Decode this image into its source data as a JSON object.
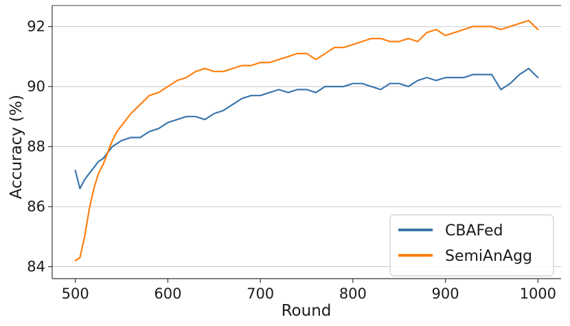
{
  "chart_data": {
    "type": "line",
    "title": "",
    "xlabel": "Round",
    "ylabel": "Accuracy (%)",
    "xlim": [
      475,
      1025
    ],
    "ylim": [
      83.6,
      92.7
    ],
    "x_ticks": [
      500,
      600,
      700,
      800,
      900,
      1000
    ],
    "y_ticks": [
      84,
      86,
      88,
      90,
      92
    ],
    "grid": "horizontal",
    "legend": {
      "position": "bottom-right"
    },
    "x": [
      500,
      505,
      510,
      515,
      520,
      525,
      530,
      535,
      540,
      545,
      550,
      560,
      570,
      580,
      590,
      600,
      610,
      620,
      630,
      640,
      650,
      660,
      670,
      680,
      690,
      700,
      710,
      720,
      730,
      740,
      750,
      760,
      770,
      780,
      790,
      800,
      810,
      820,
      830,
      840,
      850,
      860,
      870,
      880,
      890,
      900,
      910,
      920,
      930,
      940,
      950,
      960,
      970,
      980,
      990,
      1000
    ],
    "series": [
      {
        "name": "CBAFed",
        "color": "#3a75ac",
        "values": [
          87.2,
          86.6,
          86.9,
          87.1,
          87.3,
          87.5,
          87.6,
          87.8,
          88.0,
          88.1,
          88.2,
          88.3,
          88.3,
          88.5,
          88.6,
          88.8,
          88.9,
          89.0,
          89.0,
          88.9,
          89.1,
          89.2,
          89.4,
          89.6,
          89.7,
          89.7,
          89.8,
          89.9,
          89.8,
          89.9,
          89.9,
          89.8,
          90.0,
          90.0,
          90.0,
          90.1,
          90.1,
          90.0,
          89.9,
          90.1,
          90.1,
          90.0,
          90.2,
          90.3,
          90.2,
          90.3,
          90.3,
          90.3,
          90.4,
          90.4,
          90.4,
          89.9,
          90.1,
          90.4,
          90.6,
          90.3
        ]
      },
      {
        "name": "SemiAnAgg",
        "color": "#ff7f0e",
        "values": [
          84.2,
          84.3,
          85.0,
          85.9,
          86.6,
          87.1,
          87.4,
          87.8,
          88.2,
          88.5,
          88.7,
          89.1,
          89.4,
          89.7,
          89.8,
          90.0,
          90.2,
          90.3,
          90.5,
          90.6,
          90.5,
          90.5,
          90.6,
          90.7,
          90.7,
          90.8,
          90.8,
          90.9,
          91.0,
          91.1,
          91.1,
          90.9,
          91.1,
          91.3,
          91.3,
          91.4,
          91.5,
          91.6,
          91.6,
          91.5,
          91.5,
          91.6,
          91.5,
          91.8,
          91.9,
          91.7,
          91.8,
          91.9,
          92.0,
          92.0,
          92.0,
          91.9,
          92.0,
          92.1,
          92.2,
          91.9
        ]
      }
    ]
  }
}
